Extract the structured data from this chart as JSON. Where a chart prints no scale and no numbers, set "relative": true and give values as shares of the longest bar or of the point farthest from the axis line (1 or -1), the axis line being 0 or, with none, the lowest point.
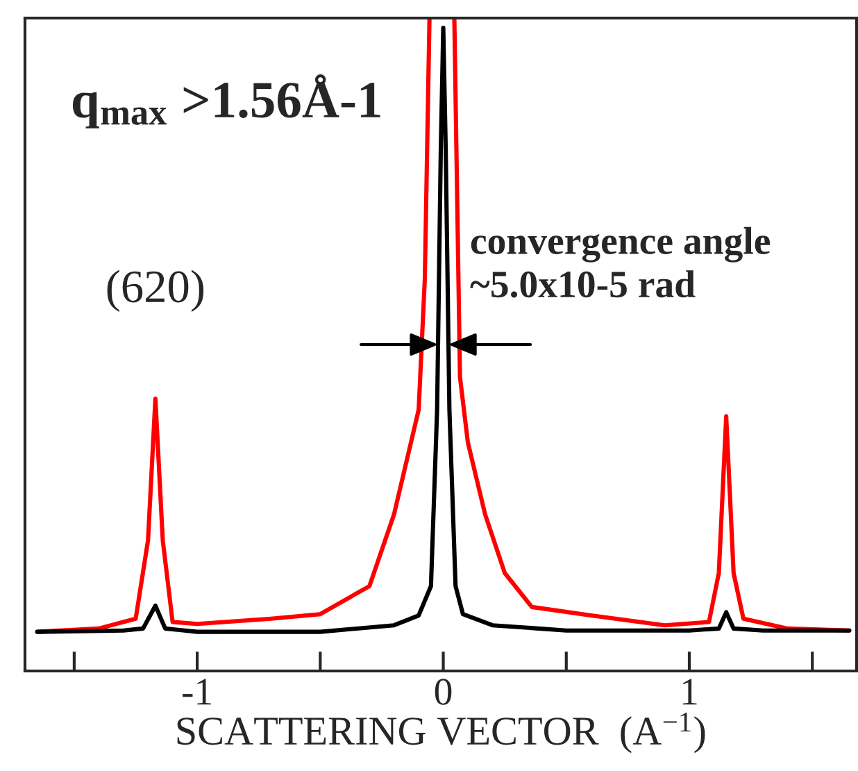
{
  "chart_data": {
    "type": "line",
    "relative": true,
    "xlabel": "SCATTERING VECTOR  (A$^{−1}$)",
    "xlim": [
      -1.7,
      1.68
    ],
    "xticks": [
      {
        "value": -1.5,
        "label": null
      },
      -1,
      {
        "value": -0.5,
        "label": null
      },
      0,
      {
        "value": 0.5,
        "label": null
      },
      1,
      {
        "value": 1.5,
        "label": null
      }
    ],
    "tick_labels": "x",
    "annotations": [
      "q$_{max}$ >1.56Å-1",
      {
        "text": "(620)",
        "x": -1.17,
        "y": 0.417
      },
      "convergence angle\n~5.0x10-5 rad"
    ],
    "series": [
      {
        "color": "#ff0000",
        "x": [
          -1.65,
          -1.4,
          -1.25,
          -1.2,
          -1.17,
          -1.14,
          -1.1,
          -1.0,
          -0.7,
          -0.5,
          -0.3,
          -0.2,
          -0.1,
          -0.075,
          -0.056,
          0,
          0.045,
          0.068,
          0.1,
          0.17,
          0.25,
          0.36,
          0.6,
          0.9,
          1.08,
          1.12,
          1.15,
          1.18,
          1.22,
          1.4,
          1.65
        ],
        "values": [
          0.06,
          0.065,
          0.08,
          0.2,
          0.417,
          0.2,
          0.075,
          0.072,
          0.08,
          0.087,
          0.13,
          0.24,
          0.4,
          0.6,
          1.0,
          null,
          1.0,
          0.45,
          0.35,
          0.24,
          0.15,
          0.098,
          0.085,
          0.07,
          0.075,
          0.15,
          0.39,
          0.15,
          0.08,
          0.065,
          0.062
        ]
      },
      {
        "color": "#000000",
        "x": [
          -1.65,
          -1.3,
          -1.22,
          -1.17,
          -1.13,
          -1.0,
          -0.5,
          -0.2,
          -0.1,
          -0.05,
          -0.025,
          -0.01,
          0,
          0.01,
          0.025,
          0.05,
          0.08,
          0.2,
          0.5,
          1.0,
          1.12,
          1.15,
          1.18,
          1.3,
          1.65
        ],
        "values": [
          0.06,
          0.062,
          0.065,
          0.1,
          0.065,
          0.06,
          0.06,
          0.07,
          0.085,
          0.13,
          0.4,
          0.8,
          0.985,
          0.8,
          0.4,
          0.13,
          0.087,
          0.07,
          0.062,
          0.062,
          0.065,
          0.09,
          0.065,
          0.062,
          0.062
        ]
      }
    ]
  }
}
